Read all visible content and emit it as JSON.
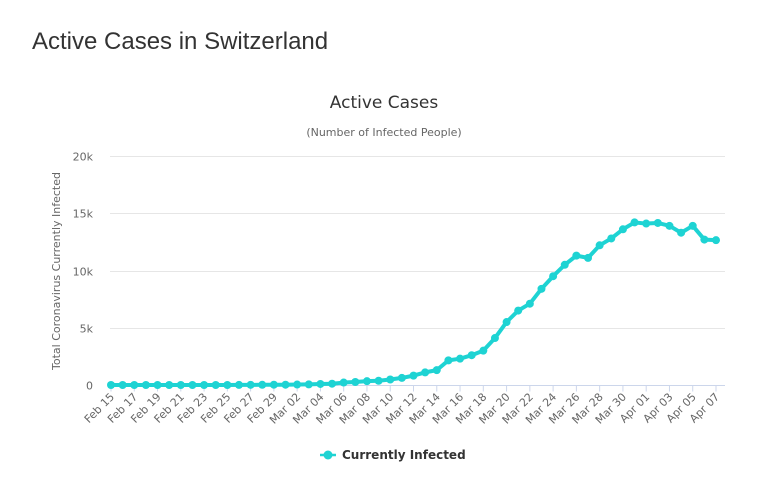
{
  "page": {
    "heading": "Active Cases in Switzerland"
  },
  "colors": {
    "series": "#1ed3d3",
    "grid": "#e6e6e6",
    "axis": "#ccd6eb",
    "text": "#333333",
    "muted": "#666666"
  },
  "chart_data": {
    "type": "line",
    "title": "Active Cases",
    "subtitle": "(Number of Infected People)",
    "ylabel": "Total Coronavirus Currently Infected",
    "xlabel": "",
    "ylim": [
      0,
      20000
    ],
    "yticks": [
      0,
      5000,
      10000,
      15000,
      20000
    ],
    "ytick_labels": [
      "0",
      "5k",
      "10k",
      "15k",
      "20k"
    ],
    "grid": true,
    "legend_position": "bottom-center",
    "x": [
      "Feb 15",
      "Feb 16",
      "Feb 17",
      "Feb 18",
      "Feb 19",
      "Feb 20",
      "Feb 21",
      "Feb 22",
      "Feb 23",
      "Feb 24",
      "Feb 25",
      "Feb 26",
      "Feb 27",
      "Feb 28",
      "Feb 29",
      "Mar 01",
      "Mar 02",
      "Mar 03",
      "Mar 04",
      "Mar 05",
      "Mar 06",
      "Mar 07",
      "Mar 08",
      "Mar 09",
      "Mar 10",
      "Mar 11",
      "Mar 12",
      "Mar 13",
      "Mar 14",
      "Mar 15",
      "Mar 16",
      "Mar 17",
      "Mar 18",
      "Mar 19",
      "Mar 20",
      "Mar 21",
      "Mar 22",
      "Mar 23",
      "Mar 24",
      "Mar 25",
      "Mar 26",
      "Mar 27",
      "Mar 28",
      "Mar 29",
      "Mar 30",
      "Mar 31",
      "Apr 01",
      "Apr 02",
      "Apr 03",
      "Apr 04",
      "Apr 05",
      "Apr 06",
      "Apr 07"
    ],
    "x_tick_labels": [
      "Feb 15",
      "Feb 17",
      "Feb 19",
      "Feb 21",
      "Feb 23",
      "Feb 25",
      "Feb 27",
      "Feb 29",
      "Mar 02",
      "Mar 04",
      "Mar 06",
      "Mar 08",
      "Mar 10",
      "Mar 12",
      "Mar 14",
      "Mar 16",
      "Mar 18",
      "Mar 20",
      "Mar 22",
      "Mar 24",
      "Mar 26",
      "Mar 28",
      "Mar 30",
      "Apr 01",
      "Apr 03",
      "Apr 05",
      "Apr 07"
    ],
    "series": [
      {
        "name": "Currently Infected",
        "values": [
          0,
          0,
          0,
          0,
          0,
          0,
          0,
          0,
          0,
          0,
          1,
          8,
          15,
          18,
          24,
          27,
          42,
          56,
          90,
          112,
          213,
          263,
          334,
          372,
          480,
          620,
          820,
          1100,
          1300,
          2150,
          2300,
          2600,
          3000,
          4100,
          5500,
          6500,
          7100,
          8400,
          9500,
          10500,
          11300,
          11100,
          12200,
          12800,
          13600,
          14200,
          14100,
          14150,
          13900,
          13300,
          13900,
          12700,
          12650
        ]
      }
    ]
  }
}
